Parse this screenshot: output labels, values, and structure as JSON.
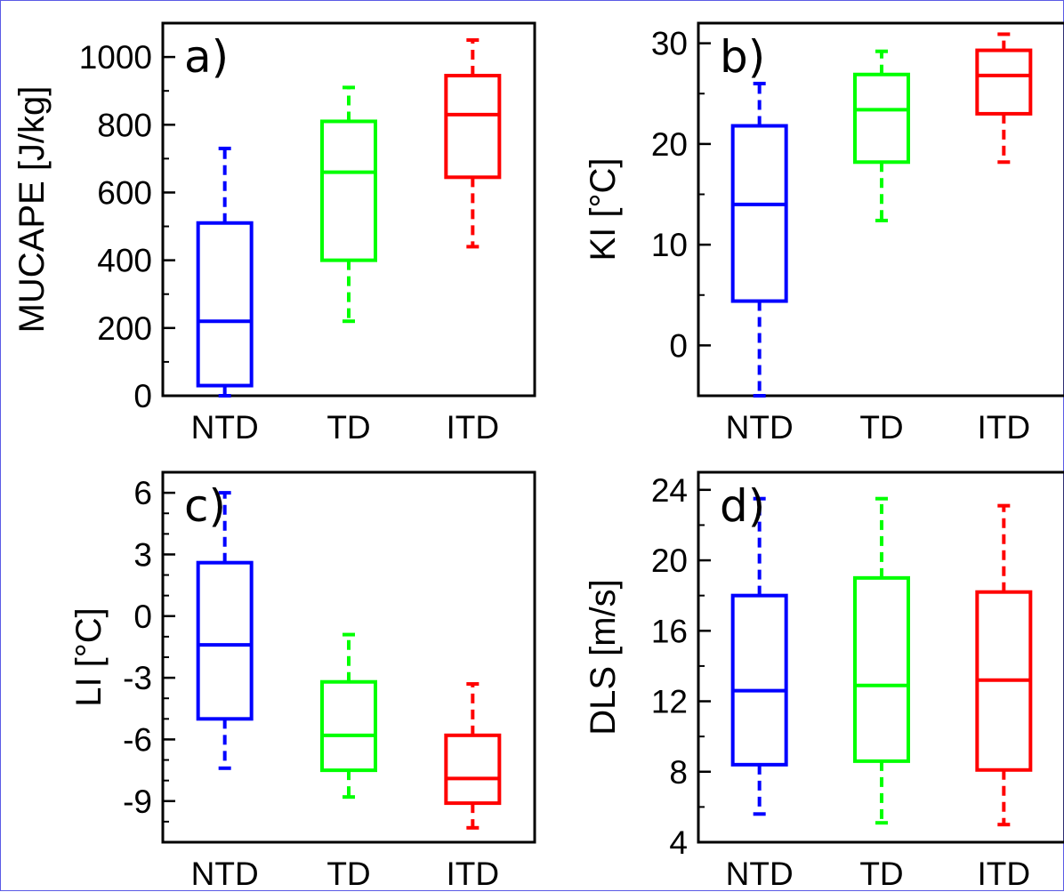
{
  "chart_data": [
    {
      "type": "box",
      "panel_label": "a)",
      "ylabel": "MUCAPE [J/kg]",
      "ylim": [
        0,
        1100
      ],
      "yticks": [
        "0",
        "200",
        "400",
        "600",
        "800",
        "1000"
      ],
      "yticks_values": [
        0,
        200,
        400,
        600,
        800,
        1000
      ],
      "minor_step": 100,
      "categories": [
        "NTD",
        "TD",
        "ITD"
      ],
      "colors": [
        "#0000ff",
        "#00ff00",
        "#ff0000"
      ],
      "boxes": [
        {
          "whisker_low": 0,
          "q1": 30,
          "median": 220,
          "q3": 510,
          "whisker_high": 730
        },
        {
          "whisker_low": 220,
          "q1": 400,
          "median": 660,
          "q3": 810,
          "whisker_high": 910
        },
        {
          "whisker_low": 440,
          "q1": 645,
          "median": 830,
          "q3": 945,
          "whisker_high": 1050
        }
      ]
    },
    {
      "type": "box",
      "panel_label": "b)",
      "ylabel": "KI  [°C]",
      "ylim": [
        -5,
        32
      ],
      "yticks": [
        "0",
        "10",
        "20",
        "30"
      ],
      "yticks_values": [
        0,
        10,
        20,
        30
      ],
      "minor_step": 5,
      "categories": [
        "NTD",
        "TD",
        "ITD"
      ],
      "colors": [
        "#0000ff",
        "#00ff00",
        "#ff0000"
      ],
      "boxes": [
        {
          "whisker_low": -5,
          "q1": 4.4,
          "median": 14,
          "q3": 21.8,
          "whisker_high": 26
        },
        {
          "whisker_low": 12.4,
          "q1": 18.2,
          "median": 23.4,
          "q3": 26.9,
          "whisker_high": 29.2
        },
        {
          "whisker_low": 18.2,
          "q1": 23,
          "median": 26.8,
          "q3": 29.3,
          "whisker_high": 30.9
        }
      ]
    },
    {
      "type": "box",
      "panel_label": "c)",
      "ylabel": "LI  [°C]",
      "ylim": [
        -11,
        7
      ],
      "yticks": [
        "6",
        "3",
        "0",
        "-3",
        "-6",
        "-9"
      ],
      "yticks_values": [
        6,
        3,
        0,
        -3,
        -6,
        -9
      ],
      "minor_step": 1,
      "categories": [
        "NTD",
        "TD",
        "ITD"
      ],
      "colors": [
        "#0000ff",
        "#00ff00",
        "#ff0000"
      ],
      "boxes": [
        {
          "whisker_low": -7.4,
          "q1": -5,
          "median": -1.4,
          "q3": 2.6,
          "whisker_high": 6
        },
        {
          "whisker_low": -8.8,
          "q1": -7.5,
          "median": -5.8,
          "q3": -3.2,
          "whisker_high": -0.9
        },
        {
          "whisker_low": -10.3,
          "q1": -9.1,
          "median": -7.9,
          "q3": -5.8,
          "whisker_high": -3.3
        }
      ]
    },
    {
      "type": "box",
      "panel_label": "d)",
      "ylabel": "DLS [m/s]",
      "ylim": [
        4,
        25
      ],
      "yticks": [
        "4",
        "8",
        "12",
        "16",
        "20",
        "24"
      ],
      "yticks_values": [
        4,
        8,
        12,
        16,
        20,
        24
      ],
      "minor_step": 2,
      "categories": [
        "NTD",
        "TD",
        "ITD"
      ],
      "colors": [
        "#0000ff",
        "#00ff00",
        "#ff0000"
      ],
      "boxes": [
        {
          "whisker_low": 5.6,
          "q1": 8.4,
          "median": 12.6,
          "q3": 18,
          "whisker_high": 23.5
        },
        {
          "whisker_low": 5.1,
          "q1": 8.6,
          "median": 12.9,
          "q3": 19,
          "whisker_high": 23.5
        },
        {
          "whisker_low": 5,
          "q1": 8.1,
          "median": 13.2,
          "q3": 18.2,
          "whisker_high": 23.1
        }
      ]
    }
  ]
}
